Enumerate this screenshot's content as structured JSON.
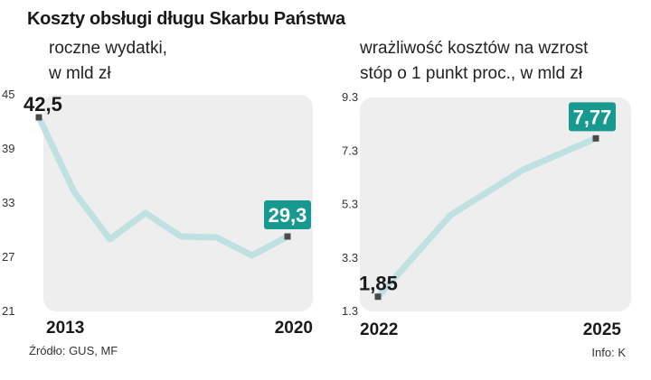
{
  "title": "Koszty obsługi długu Skarbu Państwa",
  "source": "Źródło: GUS, MF",
  "info": "Info: K",
  "colors": {
    "line": "#bfe1e1",
    "panel": "#efeeee",
    "label_box": "#17998f",
    "marker": "#4a4a4a"
  },
  "chart_data": [
    {
      "type": "line",
      "subtitle_lines": [
        "roczne wydatki,",
        "w mld zł"
      ],
      "x": [
        2013,
        2014,
        2015,
        2016,
        2017,
        2018,
        2019,
        2020
      ],
      "values": [
        42.5,
        34.2,
        29.0,
        31.9,
        29.3,
        29.2,
        27.2,
        29.3
      ],
      "ylim": [
        21,
        45
      ],
      "yticks": [
        "45",
        "39",
        "33",
        "27",
        "21"
      ],
      "xtick_labels": [
        "2013",
        "2020"
      ],
      "point_labels": [
        {
          "index": 0,
          "text": "42,5",
          "boxed": false
        },
        {
          "index": 7,
          "text": "29,3",
          "boxed": true
        }
      ],
      "grid": false,
      "legend": "none"
    },
    {
      "type": "line",
      "subtitle_lines": [
        "wrażliwość kosztów na wzrost",
        "stóp o 1 punkt proc., w mld zł"
      ],
      "x": [
        2022,
        2023,
        2024,
        2025
      ],
      "values": [
        1.85,
        4.9,
        6.6,
        7.77
      ],
      "ylim": [
        1.3,
        9.3
      ],
      "yticks": [
        "9.3",
        "7.3",
        "5.3",
        "3.3",
        "1.3"
      ],
      "xtick_labels": [
        "2022",
        "2025"
      ],
      "point_labels": [
        {
          "index": 0,
          "text": "1,85",
          "boxed": false
        },
        {
          "index": 3,
          "text": "7,77",
          "boxed": true
        }
      ],
      "grid": false,
      "legend": "none"
    }
  ]
}
